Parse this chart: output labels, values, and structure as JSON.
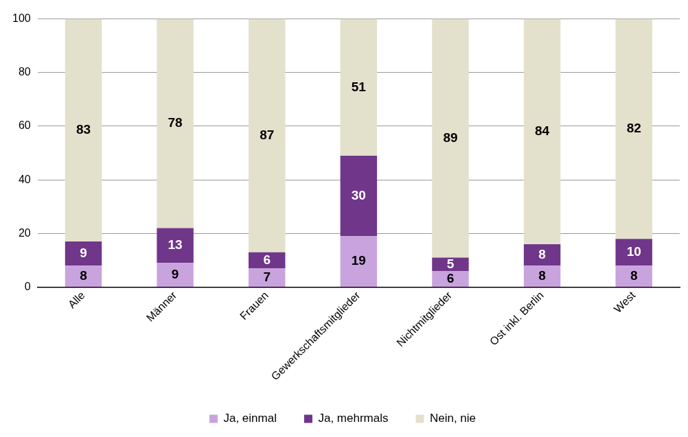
{
  "chart_data": {
    "type": "bar",
    "stacked": true,
    "categories": [
      "Alle",
      "Männer",
      "Frauen",
      "Gewerkschaftsmitglieder",
      "Nichtmitglieder",
      "Ost inkl. Berlin",
      "West"
    ],
    "series": [
      {
        "name": "Ja, einmal",
        "color": "#c9a3dd",
        "values": [
          8,
          9,
          7,
          19,
          6,
          8,
          8
        ]
      },
      {
        "name": "Ja, mehrmals",
        "color": "#70368a",
        "values": [
          9,
          13,
          6,
          30,
          5,
          8,
          10
        ]
      },
      {
        "name": "Nein, nie",
        "color": "#e3e0cc",
        "values": [
          83,
          78,
          87,
          51,
          89,
          84,
          82
        ]
      }
    ],
    "ylim": [
      0,
      100
    ],
    "yticks": [
      0,
      20,
      40,
      60,
      80,
      100
    ],
    "grid": "y",
    "legend": "bottom",
    "data_labels": true
  }
}
